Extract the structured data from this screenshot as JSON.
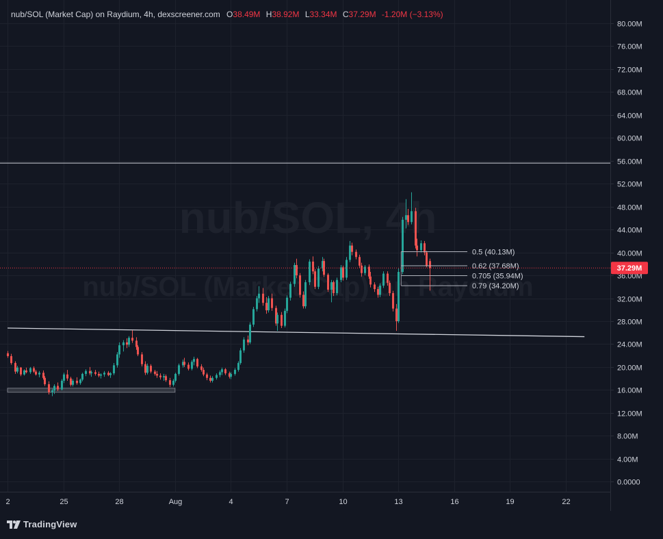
{
  "legend": {
    "symbol": "nub/SOL (Market Cap) on Raydium, 4h, dexscreener.com",
    "open_label": "O",
    "open_value": "38.49M",
    "high_label": "H",
    "high_value": "38.92M",
    "low_label": "L",
    "low_value": "33.34M",
    "close_label": "C",
    "close_value": "37.29M",
    "change_value": "-1.20M (−3.13%)"
  },
  "watermark": {
    "line1": "nub/SOL, 4h",
    "line2": "nub/SOL (Market Cap) on Raydium"
  },
  "footer": {
    "brand": "TradingView",
    "logo_icon": "tradingview-logo-icon"
  },
  "colors": {
    "background": "#131722",
    "up": "#26a69a",
    "down": "#ef5350",
    "grid": "#1e222d",
    "text": "#d1d4dc",
    "price_tag": "#f23645"
  },
  "chart_data": {
    "type": "candlestick",
    "y_unit": "M",
    "ylim": [
      -2,
      82
    ],
    "y_ticks": [
      80,
      76,
      72,
      68,
      64,
      60,
      56,
      52,
      48,
      44,
      40,
      36,
      32,
      28,
      24,
      20,
      16,
      12,
      8,
      4,
      0
    ],
    "y_tick_labels": [
      "80.00M",
      "76.00M",
      "72.00M",
      "68.00M",
      "64.00M",
      "60.00M",
      "56.00M",
      "52.00M",
      "48.00M",
      "44.00M",
      "40.00M",
      "36.00M",
      "32.00M",
      "28.00M",
      "24.00M",
      "20.00M",
      "16.00M",
      "12.00M",
      "8.00M",
      "4.00M",
      "0.0000"
    ],
    "x_ticks": [
      {
        "label": "2",
        "day": 22
      },
      {
        "label": "25",
        "day": 25
      },
      {
        "label": "28",
        "day": 28
      },
      {
        "label": "Aug",
        "day": 31
      },
      {
        "label": "4",
        "day": 34
      },
      {
        "label": "7",
        "day": 37
      },
      {
        "label": "10",
        "day": 40
      },
      {
        "label": "13",
        "day": 43
      },
      {
        "label": "16",
        "day": 46
      },
      {
        "label": "19",
        "day": 49
      },
      {
        "label": "22",
        "day": 52
      }
    ],
    "current_price": {
      "value": 37.29,
      "label": "37.29M"
    },
    "horizontal_line": {
      "value": 55.6
    },
    "trendline": {
      "from": {
        "day": 22,
        "value": 26.8
      },
      "to": {
        "day": 53,
        "value": 25.3
      }
    },
    "support_zone": {
      "from_day": 22,
      "to_day": 31,
      "low": 15.6,
      "high": 16.3
    },
    "fib_levels": [
      {
        "label": "0.5 (40.13M)",
        "value": 40.13
      },
      {
        "label": "0.62 (37.68M)",
        "value": 37.68
      },
      {
        "label": "0.705 (35.94M)",
        "value": 35.94
      },
      {
        "label": "0.79 (34.20M)",
        "value": 34.2
      }
    ],
    "candles": [
      [
        22.0,
        22.4,
        22.8,
        21.6,
        21.9
      ],
      [
        22.2,
        21.9,
        22.3,
        20.4,
        20.7
      ],
      [
        22.4,
        20.7,
        21.0,
        18.8,
        19.2
      ],
      [
        22.5,
        19.2,
        20.2,
        18.9,
        19.9
      ],
      [
        22.7,
        19.9,
        20.0,
        18.4,
        18.7
      ],
      [
        22.9,
        18.7,
        19.6,
        18.5,
        19.4
      ],
      [
        23.0,
        19.4,
        19.9,
        18.9,
        19.1
      ],
      [
        23.2,
        19.1,
        20.0,
        18.8,
        19.8
      ],
      [
        23.4,
        19.8,
        20.1,
        19.0,
        19.2
      ],
      [
        23.5,
        19.2,
        19.5,
        18.5,
        18.7
      ],
      [
        23.7,
        18.7,
        19.3,
        18.2,
        19.0
      ],
      [
        23.9,
        19.0,
        19.4,
        17.8,
        18.1
      ],
      [
        24.0,
        18.1,
        18.4,
        16.7,
        17.0
      ],
      [
        24.2,
        17.0,
        17.5,
        15.2,
        15.6
      ],
      [
        24.4,
        15.6,
        16.2,
        14.9,
        15.9
      ],
      [
        24.5,
        15.9,
        17.0,
        15.3,
        16.7
      ],
      [
        24.7,
        16.7,
        17.3,
        15.8,
        16.1
      ],
      [
        24.9,
        16.1,
        17.9,
        15.9,
        17.6
      ],
      [
        25.0,
        17.6,
        19.0,
        17.2,
        18.7
      ],
      [
        25.2,
        18.7,
        19.5,
        17.6,
        18.0
      ],
      [
        25.4,
        18.0,
        18.3,
        16.6,
        16.9
      ],
      [
        25.5,
        16.9,
        17.9,
        16.6,
        17.6
      ],
      [
        25.7,
        17.6,
        18.2,
        16.9,
        17.2
      ],
      [
        25.9,
        17.2,
        18.0,
        16.9,
        17.8
      ],
      [
        26.0,
        17.8,
        19.0,
        17.5,
        18.8
      ],
      [
        26.2,
        18.8,
        19.6,
        18.4,
        19.3
      ],
      [
        26.4,
        19.3,
        20.0,
        18.6,
        18.9
      ],
      [
        26.5,
        18.9,
        19.4,
        18.3,
        19.1
      ],
      [
        26.7,
        19.1,
        19.5,
        18.5,
        18.8
      ],
      [
        26.9,
        18.8,
        19.2,
        18.2,
        18.5
      ],
      [
        27.0,
        18.5,
        18.9,
        18.0,
        18.7
      ],
      [
        27.2,
        18.7,
        19.3,
        18.3,
        19.0
      ],
      [
        27.4,
        19.0,
        19.3,
        18.4,
        18.6
      ],
      [
        27.5,
        18.6,
        19.1,
        18.1,
        18.9
      ],
      [
        27.7,
        18.9,
        20.7,
        18.6,
        20.3
      ],
      [
        27.9,
        20.3,
        22.6,
        19.9,
        22.2
      ],
      [
        28.0,
        22.2,
        24.3,
        21.6,
        23.8
      ],
      [
        28.2,
        23.8,
        24.7,
        22.7,
        24.3
      ],
      [
        28.4,
        24.3,
        25.0,
        23.3,
        23.9
      ],
      [
        28.5,
        23.9,
        25.4,
        23.5,
        25.1
      ],
      [
        28.7,
        25.1,
        26.4,
        24.2,
        24.6
      ],
      [
        28.9,
        24.6,
        25.2,
        23.0,
        23.5
      ],
      [
        29.0,
        23.5,
        23.8,
        21.9,
        22.2
      ],
      [
        29.2,
        22.2,
        22.6,
        20.1,
        20.5
      ],
      [
        29.4,
        20.5,
        21.0,
        18.6,
        19.0
      ],
      [
        29.5,
        19.0,
        20.6,
        18.7,
        20.2
      ],
      [
        29.7,
        20.2,
        20.5,
        18.9,
        19.2
      ],
      [
        29.9,
        19.2,
        19.5,
        18.5,
        18.8
      ],
      [
        30.0,
        18.8,
        19.3,
        18.1,
        18.5
      ],
      [
        30.2,
        18.5,
        18.9,
        17.8,
        18.2
      ],
      [
        30.4,
        18.2,
        18.8,
        17.6,
        18.4
      ],
      [
        30.5,
        18.4,
        18.7,
        17.4,
        17.7
      ],
      [
        30.7,
        17.7,
        18.1,
        16.5,
        16.9
      ],
      [
        30.9,
        16.9,
        17.9,
        16.6,
        17.6
      ],
      [
        31.0,
        17.6,
        19.0,
        17.3,
        18.8
      ],
      [
        31.2,
        18.8,
        20.6,
        18.5,
        20.3
      ],
      [
        31.4,
        20.3,
        21.3,
        19.9,
        20.9
      ],
      [
        31.5,
        20.9,
        21.6,
        20.0,
        20.4
      ],
      [
        31.7,
        20.4,
        20.8,
        19.4,
        19.7
      ],
      [
        31.9,
        19.7,
        21.2,
        19.4,
        20.9
      ],
      [
        32.0,
        20.9,
        21.8,
        20.3,
        21.4
      ],
      [
        32.2,
        21.4,
        21.6,
        19.8,
        20.1
      ],
      [
        32.4,
        20.1,
        20.5,
        19.2,
        19.5
      ],
      [
        32.5,
        19.5,
        19.9,
        18.4,
        18.7
      ],
      [
        32.7,
        18.7,
        19.0,
        17.7,
        18.1
      ],
      [
        32.9,
        18.1,
        18.5,
        17.3,
        17.6
      ],
      [
        33.0,
        17.6,
        18.4,
        17.3,
        18.1
      ],
      [
        33.2,
        18.1,
        18.9,
        17.8,
        18.6
      ],
      [
        33.4,
        18.6,
        19.4,
        18.2,
        19.1
      ],
      [
        33.5,
        19.1,
        19.9,
        18.6,
        19.6
      ],
      [
        33.7,
        19.6,
        19.8,
        18.6,
        18.9
      ],
      [
        33.9,
        18.9,
        19.2,
        18.0,
        18.3
      ],
      [
        34.0,
        18.3,
        19.1,
        17.9,
        18.8
      ],
      [
        34.2,
        18.8,
        19.8,
        18.5,
        19.5
      ],
      [
        34.4,
        19.5,
        21.0,
        19.2,
        20.7
      ],
      [
        34.5,
        20.7,
        23.3,
        20.4,
        22.9
      ],
      [
        34.7,
        22.9,
        25.2,
        22.5,
        24.8
      ],
      [
        34.9,
        24.8,
        25.5,
        23.8,
        24.3
      ],
      [
        35.0,
        24.3,
        27.8,
        24.0,
        27.4
      ],
      [
        35.2,
        27.4,
        30.5,
        27.0,
        30.1
      ],
      [
        35.4,
        30.1,
        32.4,
        29.7,
        32.0
      ],
      [
        35.5,
        32.0,
        34.1,
        31.2,
        32.8
      ],
      [
        35.7,
        32.8,
        33.8,
        30.7,
        31.2
      ],
      [
        35.9,
        31.2,
        32.2,
        29.3,
        29.9
      ],
      [
        36.0,
        29.9,
        32.4,
        29.5,
        32.0
      ],
      [
        36.2,
        32.0,
        32.8,
        29.8,
        30.3
      ],
      [
        36.4,
        30.3,
        30.7,
        27.2,
        27.6
      ],
      [
        36.5,
        27.6,
        29.5,
        26.3,
        29.1
      ],
      [
        36.7,
        29.1,
        29.6,
        26.8,
        27.2
      ],
      [
        36.9,
        27.2,
        30.2,
        26.9,
        29.8
      ],
      [
        37.0,
        29.8,
        32.5,
        29.4,
        32.1
      ],
      [
        37.2,
        32.1,
        34.9,
        31.6,
        34.5
      ],
      [
        37.4,
        34.5,
        38.2,
        34.0,
        37.8
      ],
      [
        37.5,
        37.8,
        38.9,
        35.5,
        36.0
      ],
      [
        37.7,
        36.0,
        36.4,
        32.1,
        32.6
      ],
      [
        37.9,
        32.6,
        33.2,
        30.2,
        30.6
      ],
      [
        38.0,
        30.6,
        35.2,
        30.2,
        34.8
      ],
      [
        38.2,
        34.8,
        38.8,
        34.3,
        38.4
      ],
      [
        38.4,
        38.4,
        39.3,
        36.2,
        36.7
      ],
      [
        38.5,
        36.7,
        37.1,
        33.6,
        34.0
      ],
      [
        38.7,
        34.0,
        37.6,
        33.6,
        37.2
      ],
      [
        38.9,
        37.2,
        39.2,
        36.7,
        38.5
      ],
      [
        39.0,
        38.5,
        38.9,
        35.7,
        36.1
      ],
      [
        39.2,
        36.1,
        36.4,
        33.1,
        33.5
      ],
      [
        39.4,
        33.5,
        35.2,
        31.3,
        34.8
      ],
      [
        39.5,
        34.8,
        35.1,
        32.4,
        32.9
      ],
      [
        39.7,
        32.9,
        35.6,
        32.5,
        35.2
      ],
      [
        39.9,
        35.2,
        37.8,
        34.8,
        37.4
      ],
      [
        40.0,
        37.4,
        37.7,
        35.1,
        35.6
      ],
      [
        40.2,
        35.6,
        39.2,
        35.2,
        38.7
      ],
      [
        40.4,
        38.7,
        42.0,
        38.3,
        41.2
      ],
      [
        40.5,
        41.2,
        41.7,
        39.5,
        40.1
      ],
      [
        40.7,
        40.1,
        40.5,
        38.8,
        39.2
      ],
      [
        40.9,
        39.2,
        39.6,
        37.3,
        37.7
      ],
      [
        41.0,
        37.7,
        38.2,
        35.8,
        36.4
      ],
      [
        41.2,
        36.4,
        37.8,
        36.0,
        37.5
      ],
      [
        41.4,
        37.5,
        37.9,
        35.4,
        35.8
      ],
      [
        41.5,
        35.8,
        36.6,
        33.9,
        34.4
      ],
      [
        41.7,
        34.4,
        34.8,
        33.1,
        33.6
      ],
      [
        41.9,
        33.6,
        34.0,
        32.1,
        32.6
      ],
      [
        42.0,
        32.6,
        34.6,
        32.2,
        34.2
      ],
      [
        42.2,
        34.2,
        36.7,
        33.8,
        36.3
      ],
      [
        42.4,
        36.3,
        36.7,
        34.2,
        34.7
      ],
      [
        42.5,
        34.7,
        35.1,
        32.4,
        32.9
      ],
      [
        42.7,
        32.9,
        33.3,
        29.7,
        30.2
      ],
      [
        42.9,
        30.2,
        31.0,
        26.3,
        28.0
      ],
      [
        43.0,
        28.0,
        37.2,
        27.7,
        36.6
      ],
      [
        43.2,
        36.6,
        46.2,
        36.2,
        45.7
      ],
      [
        43.4,
        45.7,
        49.3,
        44.2,
        46.5
      ],
      [
        43.5,
        46.5,
        47.6,
        44.8,
        45.3
      ],
      [
        43.7,
        45.3,
        50.5,
        44.9,
        47.2
      ],
      [
        43.9,
        47.2,
        47.8,
        40.7,
        41.2
      ],
      [
        44.0,
        41.2,
        42.4,
        39.3,
        40.4
      ],
      [
        44.2,
        40.4,
        42.1,
        40.0,
        41.6
      ],
      [
        44.4,
        41.6,
        42.0,
        39.5,
        40.0
      ],
      [
        44.5,
        40.0,
        40.3,
        37.4,
        37.6
      ],
      [
        44.7,
        38.49,
        38.92,
        33.34,
        37.29
      ]
    ]
  }
}
